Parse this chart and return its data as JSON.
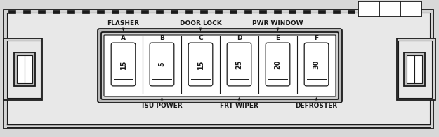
{
  "bg_color": "#d8d8d8",
  "outline_color": "#1a1a1a",
  "fuse_labels_top": [
    "A",
    "B",
    "C",
    "D",
    "E",
    "F"
  ],
  "fuse_values": [
    "15",
    "5",
    "15",
    "25",
    "20",
    "30"
  ],
  "top_annotations": [
    {
      "text": "FLASHER",
      "arrow_idx": 0
    },
    {
      "text": "DOOR LOCK",
      "arrow_idx": 2
    },
    {
      "text": "PWR WINDOW",
      "arrow_idx": 4
    }
  ],
  "bottom_annotations": [
    {
      "text": "ISU POWER",
      "arrow_idx": 1
    },
    {
      "text": "FRT WIPER",
      "arrow_idx": 3
    },
    {
      "text": "DEFROSTER",
      "arrow_idx": 5
    }
  ],
  "body_color": "#c8c8c8",
  "fuse_block_outer_color": "#b0b0b0",
  "white": "#ffffff"
}
